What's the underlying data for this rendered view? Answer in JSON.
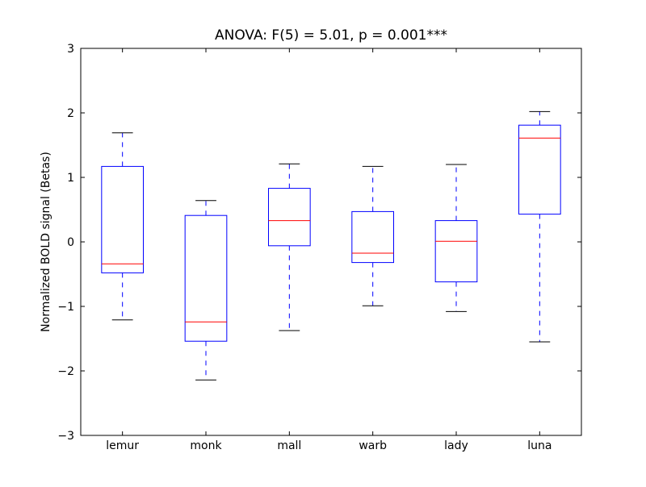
{
  "chart_data": {
    "type": "boxplot",
    "title": "ANOVA: F(5) = 5.01, p = 0.001***",
    "xlabel": "",
    "ylabel": "Normalized BOLD signal (Betas)",
    "ylim": [
      -3,
      3
    ],
    "yticks": [
      "3",
      "2",
      "1",
      "0",
      "−1",
      "−2",
      "−3"
    ],
    "ytick_values": [
      3,
      2,
      1,
      0,
      -1,
      -2,
      -3
    ],
    "categories": [
      "lemur",
      "monk",
      "mall",
      "warb",
      "lady",
      "luna"
    ],
    "boxes": [
      {
        "whisker_low": -1.21,
        "q1": -0.48,
        "median": -0.34,
        "q3": 1.17,
        "whisker_high": 1.69
      },
      {
        "whisker_low": -2.14,
        "q1": -1.54,
        "median": -1.24,
        "q3": 0.41,
        "whisker_high": 0.64
      },
      {
        "whisker_low": -1.375,
        "q1": -0.06,
        "median": 0.33,
        "q3": 0.83,
        "whisker_high": 1.21
      },
      {
        "whisker_low": -0.99,
        "q1": -0.32,
        "median": -0.175,
        "q3": 0.47,
        "whisker_high": 1.17
      },
      {
        "whisker_low": -1.08,
        "q1": -0.62,
        "median": 0.01,
        "q3": 0.33,
        "whisker_high": 1.2
      },
      {
        "whisker_low": -1.55,
        "q1": 0.43,
        "median": 1.61,
        "q3": 1.81,
        "whisker_high": 2.02
      }
    ],
    "colors": {
      "box": "#0000ff",
      "median": "#ff0000",
      "cap": "#000000"
    },
    "grid": false
  }
}
